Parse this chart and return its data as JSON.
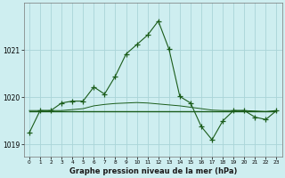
{
  "xlabel": "Graphe pression niveau de la mer (hPa)",
  "background_color": "#ceeef0",
  "grid_color": "#aad4d8",
  "line_color": "#1a5c1a",
  "hours": [
    0,
    1,
    2,
    3,
    4,
    5,
    6,
    7,
    8,
    9,
    10,
    11,
    12,
    13,
    14,
    15,
    16,
    17,
    18,
    19,
    20,
    21,
    22,
    23
  ],
  "pressure": [
    1019.25,
    1019.72,
    1019.72,
    1019.88,
    1019.92,
    1019.92,
    1020.22,
    1020.07,
    1020.45,
    1020.92,
    1021.12,
    1021.32,
    1021.62,
    1021.02,
    1020.02,
    1019.88,
    1019.38,
    1019.1,
    1019.5,
    1019.72,
    1019.72,
    1019.58,
    1019.53,
    1019.72
  ],
  "flat_pressure": [
    1019.7,
    1019.7,
    1019.7,
    1019.7,
    1019.7,
    1019.7,
    1019.7,
    1019.7,
    1019.7,
    1019.7,
    1019.7,
    1019.7,
    1019.7,
    1019.7,
    1019.7,
    1019.7,
    1019.7,
    1019.7,
    1019.7,
    1019.7,
    1019.7,
    1019.7,
    1019.7,
    1019.7
  ],
  "avg_pressure": [
    1019.72,
    1019.72,
    1019.72,
    1019.72,
    1019.74,
    1019.76,
    1019.82,
    1019.85,
    1019.87,
    1019.88,
    1019.89,
    1019.88,
    1019.86,
    1019.84,
    1019.82,
    1019.79,
    1019.76,
    1019.73,
    1019.72,
    1019.72,
    1019.72,
    1019.71,
    1019.7,
    1019.72
  ],
  "ylim": [
    1018.75,
    1022.0
  ],
  "yticks": [
    1019,
    1020,
    1021
  ],
  "marker": "+",
  "markersize": 4
}
